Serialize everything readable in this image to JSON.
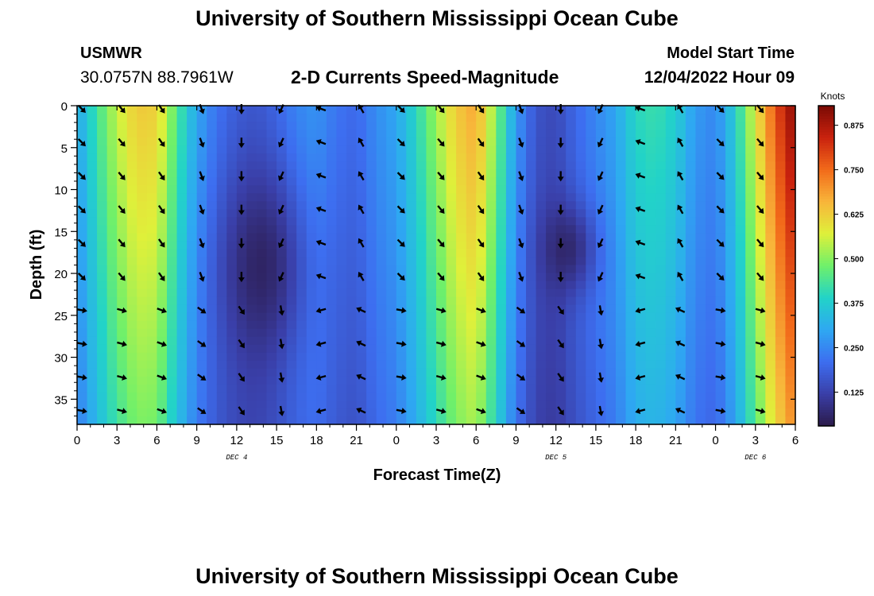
{
  "header": {
    "title": "University of Southern Mississippi Ocean Cube",
    "station": "USMWR",
    "coords": "30.0757N  88.7961W",
    "subtitle": "2-D Currents Speed-Magnitude",
    "model_label": "Model Start Time",
    "model_time": "12/04/2022 Hour 09"
  },
  "footer": {
    "title": "University of Southern Mississippi Ocean Cube"
  },
  "chart_data": {
    "type": "heatmap",
    "xlabel": "Forecast Time(Z)",
    "ylabel": "Depth (ft)",
    "x_ticks": [
      "0",
      "3",
      "6",
      "9",
      "12",
      "15",
      "18",
      "21",
      "0",
      "3",
      "6",
      "9",
      "12",
      "15",
      "18",
      "21",
      "0",
      "3",
      "6"
    ],
    "x_range_hours": [
      0,
      54
    ],
    "y_ticks": [
      0,
      5,
      10,
      15,
      20,
      25,
      30,
      35
    ],
    "y_range": [
      0,
      38
    ],
    "day_labels": [
      {
        "label": "DEC 4",
        "at_hour": 12
      },
      {
        "label": "DEC 5",
        "at_hour": 36
      },
      {
        "label": "DEC 6",
        "at_hour": 51
      }
    ],
    "colorbar": {
      "unit": "Knots",
      "range": [
        0.03,
        0.93
      ],
      "ticks": [
        "0.125",
        "0.250",
        "0.375",
        "0.500",
        "0.625",
        "0.750",
        "0.875"
      ],
      "colors": [
        "#2b1a4a",
        "#3a3fa8",
        "#3d6ef0",
        "#2ea8f2",
        "#22d3c8",
        "#6ff06a",
        "#dff03a",
        "#f8b53a",
        "#f26a1a",
        "#c9220e",
        "#7a0a04"
      ]
    },
    "speed_profile": {
      "hours": [
        0,
        1.5,
        3,
        4.5,
        6,
        7.5,
        9,
        10.5,
        12,
        13.5,
        15,
        16.5,
        18,
        19.5,
        21,
        22.5,
        24,
        25.5,
        27,
        28.5,
        30,
        31.5,
        33,
        34.5,
        36,
        37.5,
        39,
        40.5,
        42,
        43.5,
        45,
        46.5,
        48,
        49.5,
        51,
        52.5,
        54
      ],
      "surface_knots": [
        0.3,
        0.43,
        0.55,
        0.63,
        0.62,
        0.45,
        0.3,
        0.22,
        0.18,
        0.17,
        0.2,
        0.25,
        0.27,
        0.22,
        0.2,
        0.26,
        0.3,
        0.4,
        0.52,
        0.63,
        0.68,
        0.5,
        0.28,
        0.16,
        0.14,
        0.2,
        0.25,
        0.3,
        0.4,
        0.42,
        0.38,
        0.28,
        0.25,
        0.38,
        0.58,
        0.78,
        0.92
      ]
    },
    "arrow_depths_ft": [
      0,
      4,
      8,
      12,
      16,
      20,
      24,
      28,
      32,
      36
    ],
    "arrow_hours": [
      0,
      3,
      6,
      9,
      12,
      15,
      18,
      21,
      24,
      27,
      30,
      33,
      36,
      39,
      42,
      45,
      48,
      51
    ],
    "arrow_direction_note": "heading degrees clockwise from up"
  }
}
